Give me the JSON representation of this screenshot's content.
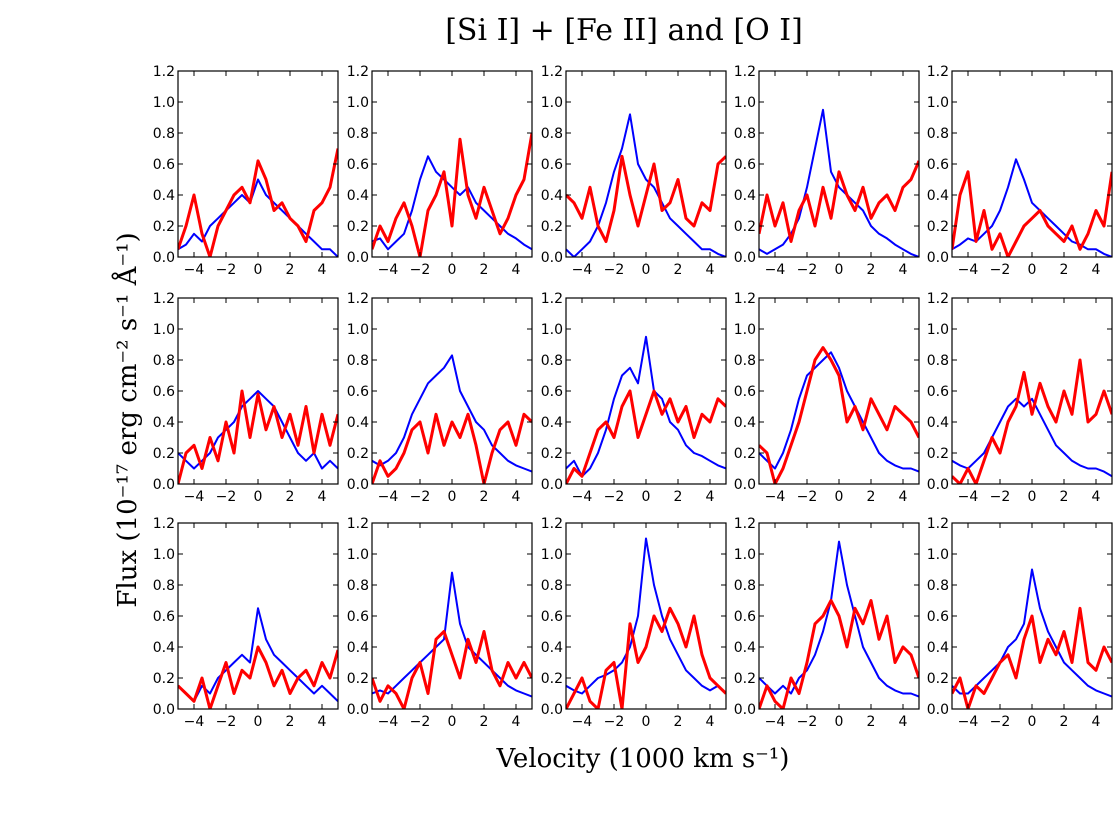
{
  "figure_title": "[Si I] + [Fe II] and [O I]",
  "chart_data": {
    "type": "line",
    "layout": "3 rows x 5 columns of small multiples",
    "title": "[Si I] + [Fe II] and [O I]",
    "xlabel": "Velocity (1000 km s⁻¹)",
    "ylabel": "Flux (10⁻¹⁷ erg cm⁻² s⁻¹ Å⁻¹)",
    "xlim": [
      -5,
      5
    ],
    "ylim": [
      0,
      1.2
    ],
    "xticks": [
      -4,
      -2,
      0,
      2,
      4
    ],
    "xtick_labels": [
      "−4",
      "−2",
      "0",
      "2",
      "4"
    ],
    "yticks": [
      0.0,
      0.2,
      0.4,
      0.6,
      0.8,
      1.0,
      1.2
    ],
    "ytick_labels": [
      "0.0",
      "0.2",
      "0.4",
      "0.6",
      "0.8",
      "1.0",
      "1.2"
    ],
    "x": [
      -5.0,
      -4.5,
      -4.0,
      -3.5,
      -3.0,
      -2.5,
      -2.0,
      -1.5,
      -1.0,
      -0.5,
      0.0,
      0.5,
      1.0,
      1.5,
      2.0,
      2.5,
      3.0,
      3.5,
      4.0,
      4.5,
      5.0
    ],
    "series_names": [
      "[Si I] + [Fe II]",
      "[O I]"
    ],
    "series_colors": [
      "#0000ff",
      "#ff0000"
    ],
    "panels": [
      {
        "row": 1,
        "col": 1,
        "series": [
          {
            "name": "[Si I] + [Fe II]",
            "color": "#0000ff",
            "values": [
              0.05,
              0.08,
              0.15,
              0.1,
              0.2,
              0.25,
              0.3,
              0.35,
              0.4,
              0.35,
              0.5,
              0.4,
              0.35,
              0.3,
              0.25,
              0.2,
              0.15,
              0.1,
              0.05,
              0.05,
              0.0
            ]
          },
          {
            "name": "[O I]",
            "color": "#ff0000",
            "values": [
              0.05,
              0.2,
              0.4,
              0.15,
              0.0,
              0.2,
              0.3,
              0.4,
              0.45,
              0.35,
              0.62,
              0.5,
              0.3,
              0.35,
              0.25,
              0.2,
              0.1,
              0.3,
              0.35,
              0.45,
              0.7
            ]
          }
        ]
      },
      {
        "row": 1,
        "col": 2,
        "series": [
          {
            "name": "[Si I] + [Fe II]",
            "color": "#0000ff",
            "values": [
              0.1,
              0.12,
              0.05,
              0.1,
              0.15,
              0.3,
              0.5,
              0.65,
              0.55,
              0.5,
              0.45,
              0.4,
              0.45,
              0.35,
              0.3,
              0.25,
              0.2,
              0.15,
              0.12,
              0.08,
              0.05
            ]
          },
          {
            "name": "[O I]",
            "color": "#ff0000",
            "values": [
              0.05,
              0.2,
              0.1,
              0.25,
              0.35,
              0.2,
              0.0,
              0.3,
              0.4,
              0.55,
              0.2,
              0.76,
              0.4,
              0.25,
              0.45,
              0.3,
              0.15,
              0.25,
              0.4,
              0.5,
              0.8
            ]
          }
        ]
      },
      {
        "row": 1,
        "col": 3,
        "series": [
          {
            "name": "[Si I] + [Fe II]",
            "color": "#0000ff",
            "values": [
              0.05,
              0.0,
              0.05,
              0.1,
              0.2,
              0.35,
              0.55,
              0.7,
              0.92,
              0.6,
              0.5,
              0.45,
              0.35,
              0.25,
              0.2,
              0.15,
              0.1,
              0.05,
              0.05,
              0.02,
              0.0
            ]
          },
          {
            "name": "[O I]",
            "color": "#ff0000",
            "values": [
              0.4,
              0.35,
              0.25,
              0.45,
              0.2,
              0.1,
              0.3,
              0.65,
              0.4,
              0.2,
              0.4,
              0.6,
              0.3,
              0.35,
              0.5,
              0.25,
              0.2,
              0.35,
              0.3,
              0.6,
              0.65
            ]
          }
        ]
      },
      {
        "row": 1,
        "col": 4,
        "series": [
          {
            "name": "[Si I] + [Fe II]",
            "color": "#0000ff",
            "values": [
              0.05,
              0.02,
              0.05,
              0.08,
              0.15,
              0.25,
              0.45,
              0.7,
              0.95,
              0.55,
              0.45,
              0.4,
              0.35,
              0.3,
              0.2,
              0.15,
              0.12,
              0.08,
              0.05,
              0.02,
              0.0
            ]
          },
          {
            "name": "[O I]",
            "color": "#ff0000",
            "values": [
              0.15,
              0.4,
              0.2,
              0.35,
              0.1,
              0.3,
              0.4,
              0.2,
              0.45,
              0.25,
              0.55,
              0.4,
              0.3,
              0.45,
              0.25,
              0.35,
              0.4,
              0.3,
              0.45,
              0.5,
              0.62
            ]
          }
        ]
      },
      {
        "row": 1,
        "col": 5,
        "series": [
          {
            "name": "[Si I] + [Fe II]",
            "color": "#0000ff",
            "values": [
              0.05,
              0.08,
              0.12,
              0.1,
              0.15,
              0.2,
              0.3,
              0.45,
              0.63,
              0.5,
              0.35,
              0.3,
              0.25,
              0.2,
              0.15,
              0.1,
              0.08,
              0.05,
              0.05,
              0.02,
              0.0
            ]
          },
          {
            "name": "[O I]",
            "color": "#ff0000",
            "values": [
              0.05,
              0.4,
              0.55,
              0.1,
              0.3,
              0.05,
              0.15,
              0.0,
              0.1,
              0.2,
              0.25,
              0.3,
              0.2,
              0.15,
              0.1,
              0.2,
              0.05,
              0.15,
              0.3,
              0.2,
              0.55
            ]
          }
        ]
      },
      {
        "row": 2,
        "col": 1,
        "series": [
          {
            "name": "[Si I] + [Fe II]",
            "color": "#0000ff",
            "values": [
              0.2,
              0.15,
              0.1,
              0.15,
              0.2,
              0.3,
              0.35,
              0.4,
              0.5,
              0.55,
              0.6,
              0.55,
              0.5,
              0.4,
              0.3,
              0.2,
              0.15,
              0.2,
              0.1,
              0.15,
              0.1
            ]
          },
          {
            "name": "[O I]",
            "color": "#ff0000",
            "values": [
              0.0,
              0.2,
              0.25,
              0.1,
              0.3,
              0.15,
              0.4,
              0.2,
              0.6,
              0.3,
              0.58,
              0.35,
              0.5,
              0.3,
              0.45,
              0.25,
              0.5,
              0.2,
              0.45,
              0.25,
              0.45
            ]
          }
        ]
      },
      {
        "row": 2,
        "col": 2,
        "series": [
          {
            "name": "[Si I] + [Fe II]",
            "color": "#0000ff",
            "values": [
              0.15,
              0.12,
              0.15,
              0.2,
              0.3,
              0.45,
              0.55,
              0.65,
              0.7,
              0.75,
              0.83,
              0.6,
              0.5,
              0.4,
              0.35,
              0.25,
              0.2,
              0.15,
              0.12,
              0.1,
              0.08
            ]
          },
          {
            "name": "[O I]",
            "color": "#ff0000",
            "values": [
              0.0,
              0.15,
              0.05,
              0.1,
              0.2,
              0.35,
              0.4,
              0.2,
              0.45,
              0.25,
              0.4,
              0.3,
              0.45,
              0.25,
              0.0,
              0.2,
              0.35,
              0.4,
              0.25,
              0.45,
              0.4
            ]
          }
        ]
      },
      {
        "row": 2,
        "col": 3,
        "series": [
          {
            "name": "[Si I] + [Fe II]",
            "color": "#0000ff",
            "values": [
              0.1,
              0.15,
              0.05,
              0.1,
              0.2,
              0.35,
              0.55,
              0.7,
              0.75,
              0.65,
              0.95,
              0.6,
              0.55,
              0.4,
              0.35,
              0.25,
              0.2,
              0.18,
              0.15,
              0.12,
              0.1
            ]
          },
          {
            "name": "[O I]",
            "color": "#ff0000",
            "values": [
              0.0,
              0.1,
              0.05,
              0.2,
              0.35,
              0.4,
              0.3,
              0.5,
              0.6,
              0.3,
              0.45,
              0.6,
              0.45,
              0.55,
              0.4,
              0.5,
              0.3,
              0.45,
              0.4,
              0.55,
              0.5
            ]
          }
        ]
      },
      {
        "row": 2,
        "col": 4,
        "series": [
          {
            "name": "[Si I] + [Fe II]",
            "color": "#0000ff",
            "values": [
              0.2,
              0.15,
              0.1,
              0.2,
              0.35,
              0.55,
              0.7,
              0.75,
              0.8,
              0.85,
              0.75,
              0.6,
              0.5,
              0.4,
              0.3,
              0.2,
              0.15,
              0.12,
              0.1,
              0.1,
              0.08
            ]
          },
          {
            "name": "[O I]",
            "color": "#ff0000",
            "values": [
              0.25,
              0.2,
              0.0,
              0.1,
              0.25,
              0.4,
              0.6,
              0.8,
              0.88,
              0.8,
              0.7,
              0.4,
              0.5,
              0.35,
              0.55,
              0.45,
              0.35,
              0.5,
              0.45,
              0.4,
              0.3
            ]
          }
        ]
      },
      {
        "row": 2,
        "col": 5,
        "series": [
          {
            "name": "[Si I] + [Fe II]",
            "color": "#0000ff",
            "values": [
              0.15,
              0.12,
              0.1,
              0.15,
              0.2,
              0.3,
              0.4,
              0.5,
              0.55,
              0.5,
              0.55,
              0.45,
              0.35,
              0.25,
              0.2,
              0.15,
              0.12,
              0.1,
              0.1,
              0.08,
              0.05
            ]
          },
          {
            "name": "[O I]",
            "color": "#ff0000",
            "values": [
              0.05,
              0.0,
              0.1,
              0.0,
              0.15,
              0.3,
              0.2,
              0.4,
              0.5,
              0.72,
              0.45,
              0.65,
              0.5,
              0.4,
              0.6,
              0.45,
              0.8,
              0.4,
              0.45,
              0.6,
              0.45
            ]
          }
        ]
      },
      {
        "row": 3,
        "col": 1,
        "series": [
          {
            "name": "[Si I] + [Fe II]",
            "color": "#0000ff",
            "values": [
              0.15,
              0.1,
              0.05,
              0.15,
              0.1,
              0.2,
              0.25,
              0.3,
              0.35,
              0.3,
              0.65,
              0.45,
              0.35,
              0.3,
              0.25,
              0.2,
              0.15,
              0.1,
              0.15,
              0.1,
              0.05
            ]
          },
          {
            "name": "[O I]",
            "color": "#ff0000",
            "values": [
              0.15,
              0.1,
              0.05,
              0.2,
              0.0,
              0.15,
              0.3,
              0.1,
              0.25,
              0.2,
              0.4,
              0.3,
              0.15,
              0.25,
              0.1,
              0.2,
              0.25,
              0.15,
              0.3,
              0.2,
              0.38
            ]
          }
        ]
      },
      {
        "row": 3,
        "col": 2,
        "series": [
          {
            "name": "[Si I] + [Fe II]",
            "color": "#0000ff",
            "values": [
              0.1,
              0.12,
              0.1,
              0.15,
              0.2,
              0.25,
              0.3,
              0.35,
              0.4,
              0.45,
              0.88,
              0.55,
              0.4,
              0.35,
              0.3,
              0.25,
              0.2,
              0.15,
              0.12,
              0.1,
              0.08
            ]
          },
          {
            "name": "[O I]",
            "color": "#ff0000",
            "values": [
              0.2,
              0.05,
              0.15,
              0.1,
              0.0,
              0.2,
              0.3,
              0.1,
              0.45,
              0.5,
              0.35,
              0.2,
              0.45,
              0.3,
              0.5,
              0.25,
              0.15,
              0.3,
              0.2,
              0.3,
              0.2
            ]
          }
        ]
      },
      {
        "row": 3,
        "col": 3,
        "series": [
          {
            "name": "[Si I] + [Fe II]",
            "color": "#0000ff",
            "values": [
              0.15,
              0.12,
              0.1,
              0.15,
              0.2,
              0.22,
              0.25,
              0.3,
              0.4,
              0.6,
              1.1,
              0.8,
              0.6,
              0.45,
              0.35,
              0.25,
              0.2,
              0.15,
              0.12,
              0.15,
              0.1
            ]
          },
          {
            "name": "[O I]",
            "color": "#ff0000",
            "values": [
              0.0,
              0.1,
              0.2,
              0.05,
              0.0,
              0.25,
              0.3,
              0.0,
              0.55,
              0.3,
              0.4,
              0.6,
              0.5,
              0.65,
              0.55,
              0.4,
              0.6,
              0.35,
              0.2,
              0.15,
              0.1
            ]
          }
        ]
      },
      {
        "row": 3,
        "col": 4,
        "series": [
          {
            "name": "[Si I] + [Fe II]",
            "color": "#0000ff",
            "values": [
              0.2,
              0.15,
              0.1,
              0.15,
              0.1,
              0.2,
              0.25,
              0.35,
              0.5,
              0.7,
              1.08,
              0.8,
              0.6,
              0.4,
              0.3,
              0.2,
              0.15,
              0.12,
              0.1,
              0.1,
              0.08
            ]
          },
          {
            "name": "[O I]",
            "color": "#ff0000",
            "values": [
              0.0,
              0.15,
              0.05,
              0.0,
              0.2,
              0.1,
              0.3,
              0.55,
              0.6,
              0.7,
              0.6,
              0.4,
              0.65,
              0.55,
              0.7,
              0.45,
              0.6,
              0.3,
              0.4,
              0.35,
              0.2
            ]
          }
        ]
      },
      {
        "row": 3,
        "col": 5,
        "series": [
          {
            "name": "[Si I] + [Fe II]",
            "color": "#0000ff",
            "values": [
              0.15,
              0.1,
              0.1,
              0.15,
              0.2,
              0.25,
              0.3,
              0.4,
              0.45,
              0.55,
              0.9,
              0.65,
              0.5,
              0.4,
              0.3,
              0.25,
              0.2,
              0.15,
              0.12,
              0.1,
              0.08
            ]
          },
          {
            "name": "[O I]",
            "color": "#ff0000",
            "values": [
              0.1,
              0.2,
              0.0,
              0.15,
              0.1,
              0.2,
              0.3,
              0.35,
              0.2,
              0.45,
              0.6,
              0.3,
              0.45,
              0.35,
              0.5,
              0.3,
              0.65,
              0.3,
              0.25,
              0.4,
              0.3
            ]
          }
        ]
      }
    ]
  }
}
